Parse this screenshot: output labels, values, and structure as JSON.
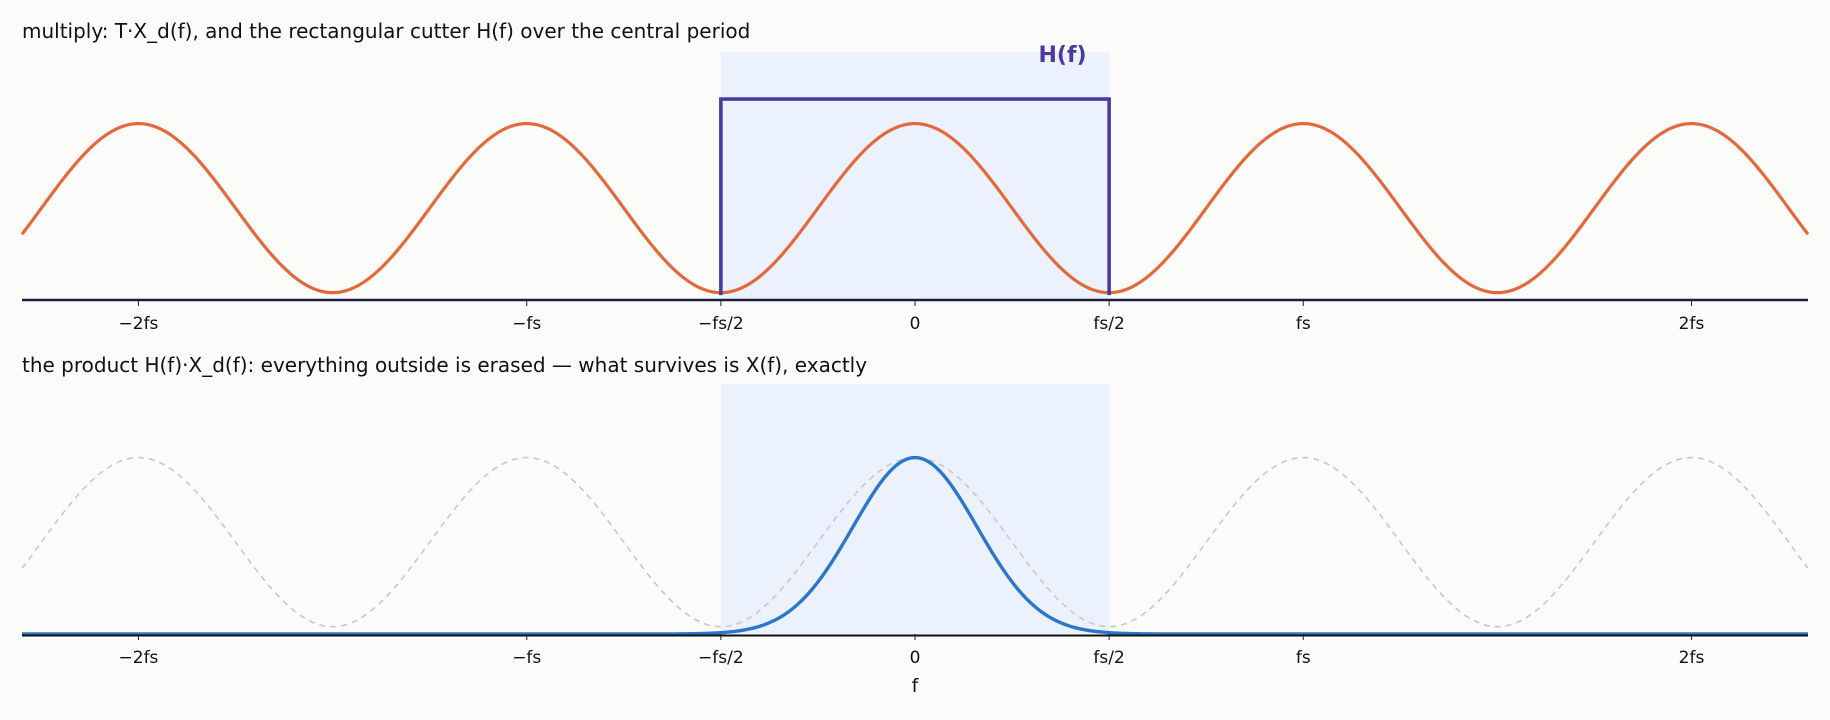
{
  "colors": {
    "background": "#fbfbfa",
    "periodic": "#e4693a",
    "cutter": "#4b3ba0",
    "surviving": "#2b77cc",
    "ghost": "#c8c8c8",
    "shade": "#e6efff",
    "axis": "#1c1c40"
  },
  "chart_data": [
    {
      "type": "line",
      "title": "multiply:  T·X_d(f), and the rectangular cutter H(f) over the central period",
      "xlabel": "",
      "ylabel": "",
      "grid": false,
      "x_units": "multiples of f_s",
      "xlim": [
        -2.3,
        2.3
      ],
      "ylim": [
        0,
        1.0
      ],
      "xticks": [
        {
          "value": -2,
          "label": "−2fs"
        },
        {
          "value": -1,
          "label": "−fs"
        },
        {
          "value": -0.5,
          "label": "−fs/2"
        },
        {
          "value": 0,
          "label": "0"
        },
        {
          "value": 0.5,
          "label": "fs/2"
        },
        {
          "value": 1,
          "label": "fs"
        },
        {
          "value": 2,
          "label": "2fs"
        }
      ],
      "shaded_band": [
        -0.5,
        0.5
      ],
      "annotations": [
        {
          "text": "H(f)",
          "x": 0.38,
          "y": 1.0
        }
      ],
      "series": [
        {
          "role": "periodic_spectrum",
          "style": "solid",
          "x": [
            -2.3,
            -2.2,
            -2.1,
            -2.0,
            -1.9,
            -1.8,
            -1.7,
            -1.6,
            -1.5,
            -1.4,
            -1.3,
            -1.2,
            -1.1,
            -1.0,
            -0.9,
            -0.8,
            -0.7,
            -0.6,
            -0.5,
            -0.4,
            -0.3,
            -0.2,
            -0.1,
            0.0,
            0.1,
            0.2,
            0.3,
            0.4,
            0.5,
            0.6,
            0.7,
            0.8,
            0.9,
            1.0,
            1.1,
            1.2,
            1.3,
            1.4,
            1.5,
            1.6,
            1.7,
            1.8,
            1.9,
            2.0,
            2.1,
            2.2,
            2.3
          ],
          "y": [
            0.24,
            0.49,
            0.68,
            0.72,
            0.68,
            0.49,
            0.24,
            0.08,
            0.03,
            0.08,
            0.24,
            0.49,
            0.68,
            0.72,
            0.68,
            0.49,
            0.24,
            0.08,
            0.03,
            0.08,
            0.24,
            0.49,
            0.68,
            0.72,
            0.68,
            0.49,
            0.24,
            0.08,
            0.03,
            0.08,
            0.24,
            0.49,
            0.68,
            0.72,
            0.68,
            0.49,
            0.24,
            0.08,
            0.03,
            0.08,
            0.24,
            0.49,
            0.68,
            0.72,
            0.68,
            0.49,
            0.24
          ]
        },
        {
          "name": "H(f)",
          "role": "cutter",
          "style": "step",
          "x": [
            -0.5,
            -0.5,
            0.5,
            0.5
          ],
          "y": [
            0.02,
            0.82,
            0.82,
            0.02
          ]
        }
      ]
    },
    {
      "type": "line",
      "title": "the product H(f)·X_d(f):  everything outside is erased — what survives is X(f), exactly",
      "xlabel": "f",
      "ylabel": "",
      "grid": false,
      "x_units": "multiples of f_s",
      "xlim": [
        -2.3,
        2.3
      ],
      "ylim": [
        0,
        1.0
      ],
      "xticks": [
        {
          "value": -2,
          "label": "−2fs"
        },
        {
          "value": -1,
          "label": "−fs"
        },
        {
          "value": -0.5,
          "label": "−fs/2"
        },
        {
          "value": 0,
          "label": "0"
        },
        {
          "value": 0.5,
          "label": "fs/2"
        },
        {
          "value": 1,
          "label": "fs"
        },
        {
          "value": 2,
          "label": "2fs"
        }
      ],
      "shaded_band": [
        -0.5,
        0.5
      ],
      "series": [
        {
          "role": "erased_images",
          "style": "dashed",
          "x": [
            -2.3,
            -2.2,
            -2.1,
            -2.0,
            -1.9,
            -1.8,
            -1.7,
            -1.6,
            -1.5,
            -1.4,
            -1.3,
            -1.2,
            -1.1,
            -1.0,
            -0.9,
            -0.8,
            -0.7,
            -0.6,
            -0.5,
            -0.4,
            -0.3,
            -0.2,
            -0.1,
            0.0,
            0.1,
            0.2,
            0.3,
            0.4,
            0.5,
            0.6,
            0.7,
            0.8,
            0.9,
            1.0,
            1.1,
            1.2,
            1.3,
            1.4,
            1.5,
            1.6,
            1.7,
            1.8,
            1.9,
            2.0,
            2.1,
            2.2,
            2.3
          ],
          "y": [
            0.24,
            0.49,
            0.68,
            0.72,
            0.68,
            0.49,
            0.24,
            0.08,
            0.03,
            0.08,
            0.24,
            0.49,
            0.68,
            0.72,
            0.68,
            0.49,
            0.24,
            0.08,
            0.03,
            0.08,
            0.24,
            0.49,
            0.68,
            0.72,
            0.68,
            0.49,
            0.24,
            0.08,
            0.03,
            0.08,
            0.24,
            0.49,
            0.68,
            0.72,
            0.68,
            0.49,
            0.24,
            0.08,
            0.03,
            0.08,
            0.24,
            0.49,
            0.68,
            0.72,
            0.68,
            0.49,
            0.24
          ]
        },
        {
          "role": "surviving_spectrum",
          "style": "solid",
          "x": [
            -2.3,
            -0.6,
            -0.5,
            -0.45,
            -0.4,
            -0.35,
            -0.3,
            -0.25,
            -0.2,
            -0.15,
            -0.1,
            -0.05,
            0.0,
            0.05,
            0.1,
            0.15,
            0.2,
            0.25,
            0.3,
            0.35,
            0.4,
            0.45,
            0.5,
            0.6,
            2.3
          ],
          "y": [
            0.0,
            0.0,
            0.01,
            0.025,
            0.05,
            0.1,
            0.17,
            0.27,
            0.38,
            0.5,
            0.61,
            0.69,
            0.72,
            0.69,
            0.61,
            0.5,
            0.38,
            0.27,
            0.17,
            0.1,
            0.05,
            0.025,
            0.01,
            0.0,
            0.0
          ]
        }
      ]
    }
  ]
}
